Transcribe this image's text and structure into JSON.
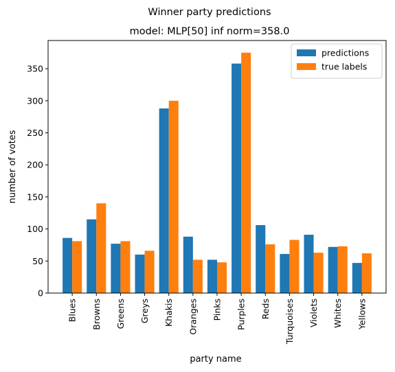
{
  "chart_data": {
    "type": "bar",
    "suptitle": "Winner party predictions",
    "title": "model: MLP[50] inf norm=358.0",
    "xlabel": "party name",
    "ylabel": "number of votes",
    "ylim": [
      0,
      394
    ],
    "yticks": [
      0,
      50,
      100,
      150,
      200,
      250,
      300,
      350
    ],
    "grid": false,
    "legend_position": "top-right",
    "categories": [
      "Blues",
      "Browns",
      "Greens",
      "Greys",
      "Khakis",
      "Oranges",
      "Pinks",
      "Purples",
      "Reds",
      "Turquoises",
      "Violets",
      "Whites",
      "Yellows"
    ],
    "series": [
      {
        "name": "predictions",
        "color": "#1f77b4",
        "values": [
          86,
          115,
          77,
          60,
          288,
          88,
          52,
          358,
          106,
          61,
          91,
          72,
          47
        ]
      },
      {
        "name": "true labels",
        "color": "#ff7f0e",
        "values": [
          81,
          140,
          81,
          66,
          300,
          52,
          48,
          375,
          76,
          83,
          63,
          73,
          62
        ]
      }
    ]
  }
}
